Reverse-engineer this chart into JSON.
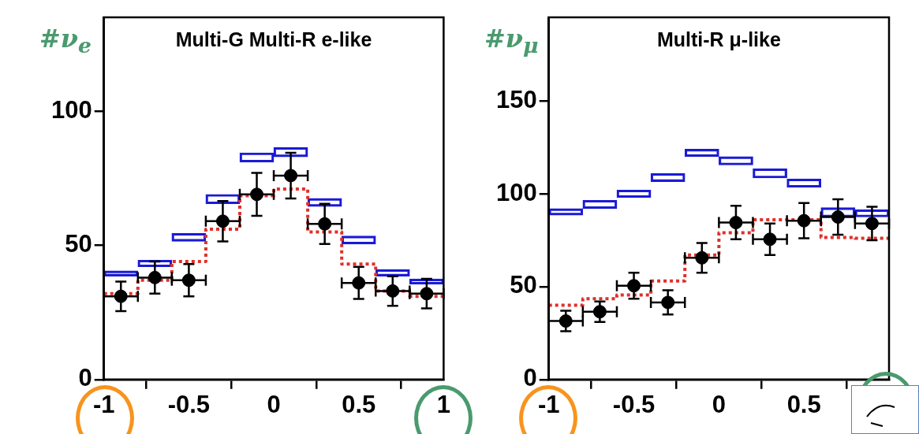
{
  "chart_data": [
    {
      "type": "scatter",
      "title": "Multi-G Multi-R e-like",
      "ylabel": "#ν$_{e}$",
      "xlim": [
        -1,
        1
      ],
      "xticks": [
        {
          "value": -1,
          "label": "-1"
        },
        {
          "value": -0.5,
          "label": "-0.5"
        },
        0,
        0.5,
        1
      ],
      "ylim": [
        0,
        135
      ],
      "yticks": [
        0,
        50,
        100
      ],
      "grid": false,
      "series": [
        {
          "type": "bar",
          "color": "#1a1ad6",
          "x": [
            -0.9,
            -0.7,
            -0.5,
            -0.3,
            -0.1,
            0.1,
            0.3,
            0.5,
            0.7,
            0.9
          ],
          "base": [
            38.5,
            42,
            51.5,
            65.5,
            81,
            83,
            64.5,
            50.5,
            38.5,
            35.5
          ],
          "values": [
            2,
            2.5,
            3,
            3.5,
            3.5,
            3.5,
            3,
            3,
            2.5,
            2
          ]
        },
        {
          "type": "step",
          "color": "#e0302a",
          "line_style": "dotted",
          "x": [
            -1,
            -0.8,
            -0.6,
            -0.4,
            -0.2,
            0,
            0.2,
            0.4,
            0.6,
            0.8,
            1
          ],
          "values": [
            32,
            37,
            44,
            56,
            68.5,
            71,
            55,
            43,
            33,
            31,
            31
          ]
        },
        {
          "color": "#000000",
          "marker": "circle",
          "x": [
            -0.9,
            -0.7,
            -0.5,
            -0.3,
            -0.1,
            0.1,
            0.3,
            0.5,
            0.7,
            0.9
          ],
          "values": [
            31,
            38,
            37,
            59,
            69,
            76,
            58,
            36,
            33,
            32
          ],
          "errors": [
            5.5,
            6,
            6,
            7.5,
            8,
            8.5,
            7.5,
            6,
            5.5,
            5.5
          ],
          "xerrors": [
            0.1,
            0.1,
            0.1,
            0.1,
            0.1,
            0.1,
            0.1,
            0.1,
            0.1,
            0.1
          ]
        }
      ]
    },
    {
      "type": "scatter",
      "title": "Multi-R μ-like",
      "ylabel": "#ν$_{μ}$",
      "xlim": [
        -1,
        1
      ],
      "xticks": [
        {
          "value": -1,
          "label": "-1"
        },
        {
          "value": -0.5,
          "label": "-0.5"
        },
        0,
        0.5,
        {
          "value": 1,
          "label": null
        }
      ],
      "ylim": [
        0,
        195
      ],
      "yticks": [
        0,
        50,
        100,
        150
      ],
      "grid": false,
      "series": [
        {
          "type": "bar",
          "color": "#1a1ad6",
          "x": [
            -0.9,
            -0.7,
            -0.5,
            -0.3,
            -0.1,
            0.1,
            0.3,
            0.5,
            0.7,
            0.9
          ],
          "base": [
            88.5,
            92,
            98,
            106.5,
            120,
            115.5,
            108.5,
            103.5,
            87.5,
            87.5
          ],
          "values": [
            3.5,
            4.5,
            4,
            4.5,
            4,
            4.5,
            5,
            4.5,
            5,
            4
          ]
        },
        {
          "type": "step",
          "color": "#e0302a",
          "line_style": "dotted",
          "x": [
            -1,
            -0.8,
            -0.6,
            -0.4,
            -0.2,
            0,
            0.2,
            0.4,
            0.6,
            0.8,
            1
          ],
          "values": [
            40,
            43.5,
            45.5,
            53,
            67,
            79,
            86,
            86,
            76.5,
            76,
            76
          ]
        },
        {
          "color": "#000000",
          "marker": "circle",
          "x": [
            -0.9,
            -0.7,
            -0.5,
            -0.3,
            -0.1,
            0.1,
            0.3,
            0.5,
            0.7,
            0.9
          ],
          "values": [
            31.5,
            36.5,
            50.5,
            41.5,
            65.5,
            84.5,
            75.5,
            85.5,
            87.5,
            84
          ],
          "errors": [
            5.5,
            5.5,
            7,
            6.5,
            8,
            9,
            8.5,
            9.5,
            9.5,
            9
          ],
          "xerrors": [
            0.1,
            0.1,
            0.1,
            0.1,
            0.1,
            0.1,
            0.1,
            0.1,
            0.1,
            0.1
          ]
        }
      ]
    }
  ]
}
